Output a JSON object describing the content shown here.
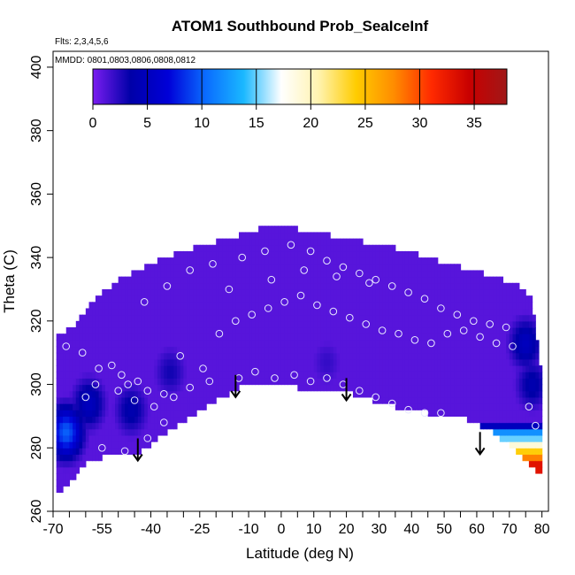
{
  "chart_data": {
    "type": "heatmap",
    "title": "ATOM1 Southbound Prob_SeaIceInf",
    "flights_note": "Flts: 2,3,4,5,6",
    "dates_note": "MMDD: 0801,0803,0806,0808,0812",
    "xlabel": "Latitude (deg N)",
    "ylabel": "Theta (C)",
    "xlim": [
      -70,
      82
    ],
    "ylim": [
      260,
      405
    ],
    "x_ticks": [
      -70,
      -55,
      -40,
      -25,
      -10,
      0,
      10,
      20,
      30,
      40,
      50,
      60,
      70,
      80
    ],
    "x_tick_labels": [
      "-70",
      "-55",
      "-40",
      "-25",
      "-10",
      "0",
      "10",
      "20",
      "30",
      "40",
      "50",
      "60",
      "70",
      "80"
    ],
    "x_minor_ticks": [
      -65,
      -60,
      -50,
      -45,
      -35,
      -30,
      -20,
      -15,
      -5,
      5,
      15,
      25,
      35,
      45,
      55,
      65,
      75
    ],
    "y_ticks": [
      260,
      280,
      300,
      320,
      340,
      360,
      380,
      400
    ],
    "y_tick_labels": [
      "260",
      "280",
      "300",
      "320",
      "340",
      "360",
      "380",
      "400"
    ],
    "colorbar": {
      "range": [
        0,
        38
      ],
      "ticks": [
        0,
        5,
        10,
        15,
        20,
        25,
        30,
        35
      ],
      "tick_labels": [
        "0",
        "5",
        "10",
        "15",
        "20",
        "25",
        "30",
        "35"
      ],
      "colors": [
        "#7a1df0",
        "#0000a8",
        "#0000d8",
        "#0a6cff",
        "#1ab8ff",
        "#ffffff",
        "#fff3b0",
        "#ffcc00",
        "#ff8c00",
        "#ff2a00",
        "#c80000",
        "#a01818"
      ]
    },
    "field": {
      "background_value": 1,
      "upper_boundary": [
        [
          -69,
          315
        ],
        [
          -64,
          318
        ],
        [
          -58,
          326
        ],
        [
          -50,
          333
        ],
        [
          -40,
          338
        ],
        [
          -30,
          342
        ],
        [
          -20,
          345
        ],
        [
          -10,
          348
        ],
        [
          -3,
          350
        ],
        [
          5,
          349
        ],
        [
          15,
          347
        ],
        [
          25,
          345
        ],
        [
          35,
          343
        ],
        [
          45,
          340
        ],
        [
          55,
          337
        ],
        [
          65,
          334
        ],
        [
          73,
          331
        ],
        [
          77,
          327
        ],
        [
          79,
          310
        ],
        [
          80,
          300
        ]
      ],
      "lower_boundary": [
        [
          -69,
          266
        ],
        [
          -66,
          268
        ],
        [
          -60,
          275
        ],
        [
          -52,
          278
        ],
        [
          -44,
          278
        ],
        [
          -38,
          283
        ],
        [
          -32,
          287
        ],
        [
          -25,
          292
        ],
        [
          -18,
          296
        ],
        [
          -12,
          300
        ],
        [
          -5,
          301
        ],
        [
          5,
          299
        ],
        [
          15,
          299
        ],
        [
          25,
          296
        ],
        [
          35,
          293
        ],
        [
          45,
          291
        ],
        [
          55,
          290
        ],
        [
          65,
          285
        ],
        [
          72,
          279
        ],
        [
          78,
          273
        ],
        [
          80,
          272
        ]
      ],
      "blobs": [
        {
          "lat": -59,
          "theta": 294,
          "value": 5
        },
        {
          "lat": -66,
          "theta": 285,
          "value": 10
        },
        {
          "lat": -46,
          "theta": 292,
          "value": 4
        },
        {
          "lat": -34,
          "theta": 304,
          "value": 3
        },
        {
          "lat": 75,
          "theta": 313,
          "value": 5
        },
        {
          "lat": 77,
          "theta": 300,
          "value": 4
        },
        {
          "lat": 14,
          "theta": 307,
          "value": 2
        }
      ],
      "stripes": {
        "lat_start": 61,
        "lat_end": 80,
        "rows": [
          {
            "theta": 286,
            "value": 5
          },
          {
            "theta": 284,
            "value": 12
          },
          {
            "theta": 282,
            "value": 15
          },
          {
            "theta": 280,
            "value": 19
          },
          {
            "theta": 278,
            "value": 24
          },
          {
            "theta": 276,
            "value": 28
          },
          {
            "theta": 274,
            "value": 33
          }
        ]
      }
    },
    "observation_points": [
      [
        -66,
        312
      ],
      [
        -61,
        310
      ],
      [
        -56,
        305
      ],
      [
        -52,
        306
      ],
      [
        -49,
        303
      ],
      [
        -47,
        300
      ],
      [
        -44,
        301
      ],
      [
        -41,
        298
      ],
      [
        -36,
        297
      ],
      [
        -31,
        309
      ],
      [
        -24,
        305
      ],
      [
        -19,
        316
      ],
      [
        -14,
        320
      ],
      [
        -9,
        322
      ],
      [
        -4,
        324
      ],
      [
        1,
        326
      ],
      [
        6,
        328
      ],
      [
        11,
        325
      ],
      [
        16,
        323
      ],
      [
        21,
        321
      ],
      [
        26,
        319
      ],
      [
        31,
        317
      ],
      [
        36,
        316
      ],
      [
        41,
        314
      ],
      [
        46,
        313
      ],
      [
        51,
        316
      ],
      [
        56,
        317
      ],
      [
        61,
        315
      ],
      [
        66,
        313
      ],
      [
        71,
        312
      ],
      [
        -57,
        300
      ],
      [
        -50,
        298
      ],
      [
        -45,
        295
      ],
      [
        -39,
        293
      ],
      [
        -33,
        296
      ],
      [
        -28,
        299
      ],
      [
        -22,
        301
      ],
      [
        -13,
        302
      ],
      [
        -8,
        304
      ],
      [
        -2,
        302
      ],
      [
        4,
        303
      ],
      [
        9,
        301
      ],
      [
        14,
        302
      ],
      [
        19,
        300
      ],
      [
        24,
        298
      ],
      [
        29,
        296
      ],
      [
        34,
        294
      ],
      [
        39,
        292
      ],
      [
        44,
        291
      ],
      [
        49,
        291
      ],
      [
        -42,
        326
      ],
      [
        -35,
        331
      ],
      [
        -28,
        336
      ],
      [
        -21,
        338
      ],
      [
        -12,
        340
      ],
      [
        -5,
        342
      ],
      [
        3,
        344
      ],
      [
        9,
        342
      ],
      [
        14,
        339
      ],
      [
        19,
        337
      ],
      [
        24,
        335
      ],
      [
        29,
        333
      ],
      [
        34,
        331
      ],
      [
        39,
        329
      ],
      [
        44,
        327
      ],
      [
        49,
        324
      ],
      [
        54,
        322
      ],
      [
        59,
        320
      ],
      [
        64,
        319
      ],
      [
        69,
        318
      ],
      [
        -16,
        330
      ],
      [
        -3,
        333
      ],
      [
        7,
        336
      ],
      [
        17,
        334
      ],
      [
        27,
        332
      ],
      [
        -60,
        296
      ],
      [
        -55,
        280
      ],
      [
        -48,
        279
      ],
      [
        -41,
        283
      ],
      [
        -36,
        288
      ],
      [
        76,
        293
      ],
      [
        78,
        287
      ]
    ],
    "arrows": [
      {
        "lat": -44,
        "theta": 283
      },
      {
        "lat": -14,
        "theta": 303
      },
      {
        "lat": 20,
        "theta": 302
      },
      {
        "lat": 61,
        "theta": 285
      }
    ]
  }
}
